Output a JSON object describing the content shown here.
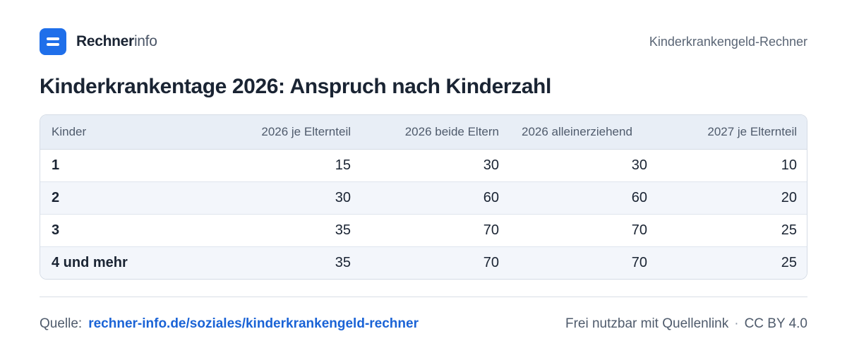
{
  "brand": {
    "name_strong": "Rechner",
    "name_light": "info"
  },
  "header": {
    "page_label": "Kinderkrankengeld-Rechner"
  },
  "title": "Kinderkrankentage 2026: Anspruch nach Kinderzahl",
  "table": {
    "columns": [
      "Kinder",
      "2026 je Elternteil",
      "2026 beide Eltern",
      "2026 alleinerziehend",
      "2027 je Elternteil"
    ],
    "rows": [
      [
        "1",
        "15",
        "30",
        "30",
        "10"
      ],
      [
        "2",
        "30",
        "60",
        "60",
        "20"
      ],
      [
        "3",
        "35",
        "70",
        "70",
        "25"
      ],
      [
        "4 und mehr",
        "35",
        "70",
        "70",
        "25"
      ]
    ]
  },
  "footer": {
    "source_label": "Quelle:",
    "source_link": "rechner-info.de/soziales/kinderkrankengeld-rechner",
    "license_text": "Frei nutzbar mit Quellenlink",
    "separator": "·",
    "license": "CC BY 4.0"
  },
  "colors": {
    "accent": "#1f6fea",
    "link": "#1a63d6",
    "header_bg": "#e8eef6",
    "row_alt": "#f3f6fb"
  }
}
